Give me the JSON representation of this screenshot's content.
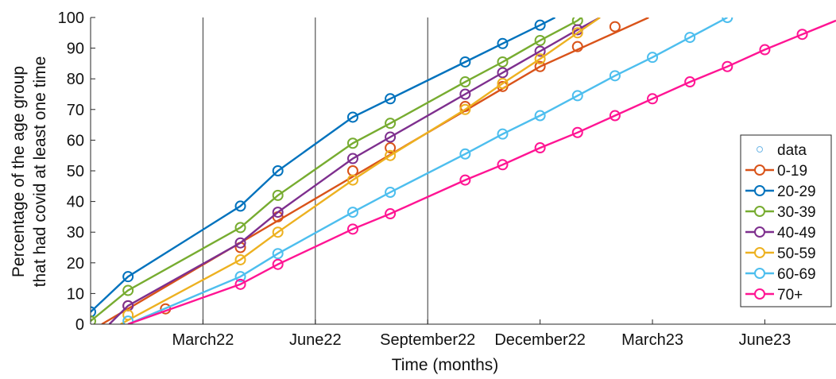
{
  "chart_data": {
    "type": "line",
    "title": "",
    "xlabel": "Time (months)",
    "ylabel_lines": [
      "Percentage of the age group",
      "that had covid at least one time"
    ],
    "ylim": [
      0,
      100
    ],
    "yticks": [
      0,
      10,
      20,
      30,
      40,
      50,
      60,
      70,
      80,
      90,
      100
    ],
    "x_unit": "months after 1 Jan 2022",
    "xlim": [
      -1.0,
      18.9
    ],
    "xticks": [
      {
        "label": "March22",
        "x": 2
      },
      {
        "label": "June22",
        "x": 5
      },
      {
        "label": "September22",
        "x": 8
      },
      {
        "label": "December22",
        "x": 11
      },
      {
        "label": "March23",
        "x": 14
      },
      {
        "label": "June23",
        "x": 17
      }
    ],
    "vlines": [
      2,
      5,
      8
    ],
    "grid": false,
    "legend_position": "right",
    "legend_data_label": "data",
    "legend_data_color": "#6fb7e6",
    "series": [
      {
        "name": "0-19",
        "color": "#d95319",
        "line": [
          [
            -0.7,
            0
          ],
          [
            11,
            84
          ],
          [
            13.9,
            100
          ]
        ],
        "points": [
          [
            0,
            6
          ],
          [
            1,
            5
          ],
          [
            3,
            25
          ],
          [
            4,
            35
          ],
          [
            6,
            50
          ],
          [
            7,
            57.5
          ],
          [
            9,
            71
          ],
          [
            10,
            77.5
          ],
          [
            11,
            84
          ],
          [
            12,
            90.5
          ],
          [
            13,
            97
          ]
        ]
      },
      {
        "name": "20-29",
        "color": "#0072bd",
        "line": [
          [
            -1,
            4
          ],
          [
            0,
            15.5
          ],
          [
            3,
            38.5
          ],
          [
            4,
            50
          ],
          [
            6,
            67.5
          ],
          [
            7,
            73.5
          ],
          [
            9,
            85.5
          ],
          [
            10,
            91.5
          ],
          [
            11,
            97.5
          ],
          [
            11.4,
            100
          ]
        ],
        "points": [
          [
            -1,
            4
          ],
          [
            0,
            15.5
          ],
          [
            3,
            38.5
          ],
          [
            4,
            50
          ],
          [
            6,
            67.5
          ],
          [
            7,
            73.5
          ],
          [
            9,
            85.5
          ],
          [
            10,
            91.5
          ],
          [
            11,
            97.5
          ]
        ]
      },
      {
        "name": "30-39",
        "color": "#77ac30",
        "line": [
          [
            -1,
            1
          ],
          [
            0,
            11
          ],
          [
            3,
            31.5
          ],
          [
            4,
            42
          ],
          [
            6,
            59
          ],
          [
            7,
            65.5
          ],
          [
            9,
            79
          ],
          [
            10,
            85.5
          ],
          [
            11,
            92.5
          ],
          [
            12,
            99
          ],
          [
            12.1,
            100
          ]
        ],
        "points": [
          [
            -1,
            1
          ],
          [
            0,
            11
          ],
          [
            3,
            31.5
          ],
          [
            4,
            42
          ],
          [
            6,
            59
          ],
          [
            7,
            65.5
          ],
          [
            9,
            79
          ],
          [
            10,
            85.5
          ],
          [
            11,
            92.5
          ],
          [
            12,
            99
          ]
        ]
      },
      {
        "name": "40-49",
        "color": "#7e2f8e",
        "line": [
          [
            -0.5,
            0
          ],
          [
            0,
            6
          ],
          [
            3,
            26.5
          ],
          [
            4,
            36.5
          ],
          [
            6,
            54
          ],
          [
            7,
            61
          ],
          [
            9,
            75
          ],
          [
            10,
            82
          ],
          [
            11,
            89
          ],
          [
            12,
            96
          ],
          [
            12.6,
            100
          ]
        ],
        "points": [
          [
            0,
            6
          ],
          [
            3,
            26.5
          ],
          [
            4,
            36.5
          ],
          [
            6,
            54
          ],
          [
            7,
            61
          ],
          [
            9,
            75
          ],
          [
            10,
            82
          ],
          [
            11,
            89
          ],
          [
            12,
            96
          ]
        ]
      },
      {
        "name": "50-59",
        "color": "#edb120",
        "line": [
          [
            -0.2,
            0
          ],
          [
            3,
            21
          ],
          [
            4,
            30
          ],
          [
            6,
            47
          ],
          [
            7,
            55
          ],
          [
            9,
            70
          ],
          [
            10,
            78.5
          ],
          [
            11,
            86.5
          ],
          [
            12,
            95
          ],
          [
            12.6,
            100
          ]
        ],
        "points": [
          [
            0,
            3
          ],
          [
            3,
            21
          ],
          [
            4,
            30
          ],
          [
            6,
            47
          ],
          [
            7,
            55
          ],
          [
            9,
            70
          ],
          [
            10,
            78.5
          ],
          [
            11,
            86.5
          ],
          [
            12,
            95
          ]
        ]
      },
      {
        "name": "60-69",
        "color": "#4dbeee",
        "line": [
          [
            0,
            0
          ],
          [
            3,
            15.5
          ],
          [
            4,
            23
          ],
          [
            6,
            36.5
          ],
          [
            7,
            43
          ],
          [
            9,
            55.5
          ],
          [
            10,
            62
          ],
          [
            11,
            68
          ],
          [
            12,
            74.5
          ],
          [
            13,
            81
          ],
          [
            14,
            87
          ],
          [
            15,
            93.5
          ],
          [
            16,
            100
          ]
        ],
        "points": [
          [
            0,
            1
          ],
          [
            3,
            15.5
          ],
          [
            4,
            23
          ],
          [
            6,
            36.5
          ],
          [
            7,
            43
          ],
          [
            9,
            55.5
          ],
          [
            10,
            62
          ],
          [
            11,
            68
          ],
          [
            12,
            74.5
          ],
          [
            13,
            81
          ],
          [
            14,
            87
          ],
          [
            15,
            93.5
          ],
          [
            16,
            100
          ]
        ]
      },
      {
        "name": "70+",
        "color": "#ff1493",
        "line": [
          [
            0,
            0
          ],
          [
            3,
            13
          ],
          [
            4,
            19.5
          ],
          [
            6,
            31
          ],
          [
            7,
            36
          ],
          [
            9,
            47
          ],
          [
            10,
            52
          ],
          [
            11,
            57.5
          ],
          [
            12,
            62.5
          ],
          [
            13,
            68
          ],
          [
            14,
            73.5
          ],
          [
            15,
            79
          ],
          [
            16,
            84
          ],
          [
            17,
            89.5
          ],
          [
            18,
            94.5
          ],
          [
            18.9,
            99
          ]
        ],
        "points": [
          [
            3,
            13
          ],
          [
            4,
            19.5
          ],
          [
            6,
            31
          ],
          [
            7,
            36
          ],
          [
            9,
            47
          ],
          [
            10,
            52
          ],
          [
            11,
            57.5
          ],
          [
            12,
            62.5
          ],
          [
            13,
            68
          ],
          [
            14,
            73.5
          ],
          [
            15,
            79
          ],
          [
            16,
            84
          ],
          [
            17,
            89.5
          ],
          [
            18,
            94.5
          ]
        ]
      }
    ]
  }
}
